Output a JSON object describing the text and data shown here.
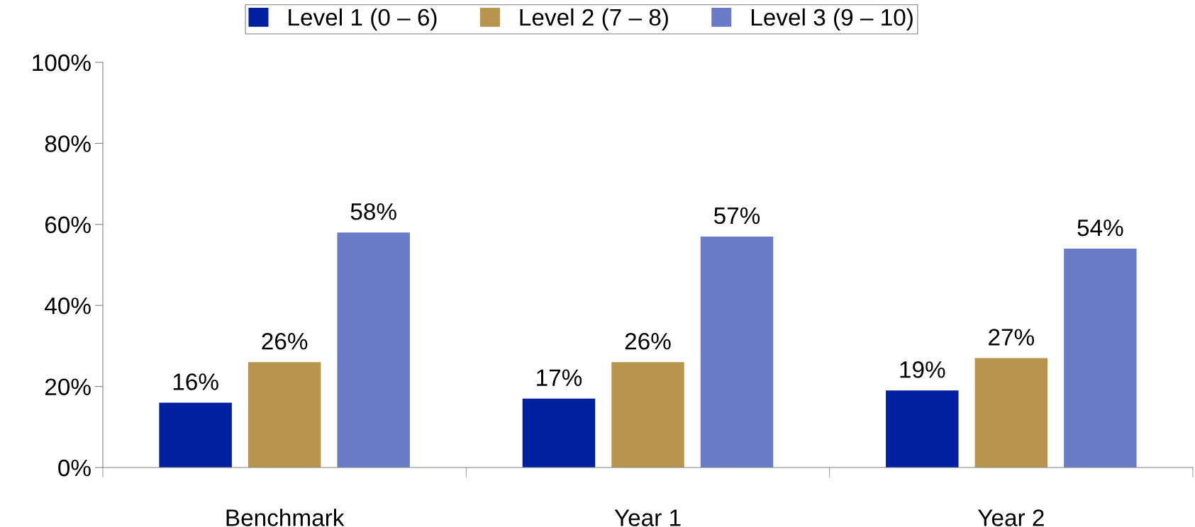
{
  "chart_data": {
    "type": "bar",
    "categories": [
      "Benchmark",
      "Year 1",
      "Year 2"
    ],
    "series": [
      {
        "name": "Level 1 (0 – 6)",
        "color": "#0020a0",
        "values": [
          16,
          17,
          19
        ],
        "value_labels": [
          "16%",
          "17%",
          "19%"
        ]
      },
      {
        "name": "Level 2 (7 – 8)",
        "color": "#b8944c",
        "values": [
          26,
          26,
          27
        ],
        "value_labels": [
          "26%",
          "26%",
          "27%"
        ]
      },
      {
        "name": "Level 3 (9 – 10)",
        "color": "#6a7bc8",
        "values": [
          58,
          57,
          54
        ],
        "value_labels": [
          "58%",
          "57%",
          "54%"
        ]
      }
    ],
    "ylim": [
      0,
      100
    ],
    "yticks": [
      {
        "value": 0,
        "label": "0%"
      },
      {
        "value": 20,
        "label": "20%"
      },
      {
        "value": 40,
        "label": "40%"
      },
      {
        "value": 60,
        "label": "60%"
      },
      {
        "value": 80,
        "label": "80%"
      },
      {
        "value": 100,
        "label": "100%"
      }
    ],
    "grid": false,
    "legend": "top"
  }
}
